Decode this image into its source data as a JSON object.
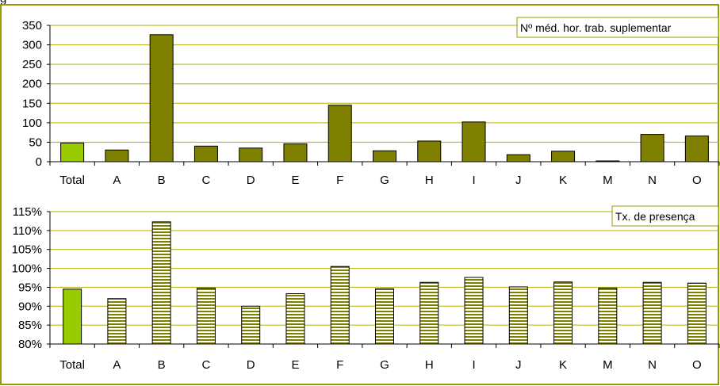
{
  "page_title_partial": "g",
  "chart_data": [
    {
      "type": "bar",
      "legend": "Nº méd. hor. trab. suplementar",
      "legend_placement": "top-right",
      "categories": [
        "Total",
        "A",
        "B",
        "C",
        "D",
        "E",
        "F",
        "G",
        "H",
        "I",
        "J",
        "K",
        "M",
        "N",
        "O"
      ],
      "values": [
        48,
        30,
        326,
        40,
        35,
        46,
        145,
        28,
        53,
        102,
        18,
        27,
        2,
        70,
        66
      ],
      "ylim": [
        0,
        350
      ],
      "yticks": [
        0,
        50,
        100,
        150,
        200,
        250,
        300,
        350
      ],
      "ytick_labels": [
        "0",
        "50",
        "100",
        "150",
        "200",
        "250",
        "300",
        "350"
      ],
      "grid": true,
      "colors": {
        "highlight": "#99cc00",
        "bar": "#808000",
        "grid": "#b3b300"
      }
    },
    {
      "type": "bar",
      "legend": "Tx. de presença",
      "legend_placement": "top-right",
      "categories": [
        "Total",
        "A",
        "B",
        "C",
        "D",
        "E",
        "F",
        "G",
        "H",
        "I",
        "J",
        "K",
        "M",
        "N",
        "O"
      ],
      "values": [
        94.5,
        92.0,
        112.3,
        94.8,
        90.0,
        93.3,
        100.5,
        94.6,
        96.3,
        97.6,
        95.1,
        96.4,
        94.8,
        96.3,
        96.1
      ],
      "ylim": [
        80,
        115
      ],
      "yticks": [
        80,
        85,
        90,
        95,
        100,
        105,
        110,
        115
      ],
      "ytick_labels": [
        "80%",
        "85%",
        "90%",
        "95%",
        "100%",
        "105%",
        "110%",
        "115%"
      ],
      "grid": true,
      "pattern": "horizontal-stripes",
      "colors": {
        "highlight": "#99cc00",
        "bar": "#808000",
        "grid": "#b3b300"
      }
    }
  ],
  "colors": {
    "frame_border": "#999900",
    "background": "#ffffff"
  }
}
